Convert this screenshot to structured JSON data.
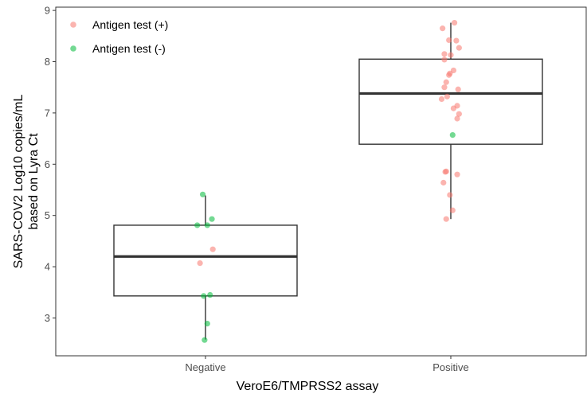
{
  "chart_data": {
    "type": "scatter",
    "subtype": "boxplot-with-jitter",
    "title": "",
    "xlabel": "VeroE6/TMPRSS2 assay",
    "ylabel_lines": [
      "SARS-COV2 Log10 copies/mL",
      "based on Lyra Ct"
    ],
    "categories": [
      "Negative",
      "Positive"
    ],
    "ylim": [
      2.4,
      9
    ],
    "yticks": [
      3,
      4,
      5,
      6,
      7,
      8,
      9
    ],
    "grid": false,
    "legend_position": "top-left",
    "boxes": [
      {
        "category": "Negative",
        "whisker_low": 2.58,
        "q1": 3.43,
        "median": 4.2,
        "q3": 4.81,
        "whisker_high": 5.39
      },
      {
        "category": "Positive",
        "whisker_low": 4.93,
        "q1": 6.39,
        "median": 7.38,
        "q3": 8.05,
        "whisker_high": 8.76
      }
    ],
    "series": [
      {
        "name": "Antigen test (+)",
        "color": "#f8766d",
        "points": [
          {
            "x": "Negative",
            "y": 4.07,
            "jitter": -0.06
          },
          {
            "x": "Negative",
            "y": 4.34,
            "jitter": 0.08
          },
          {
            "x": "Positive",
            "y": 8.76,
            "jitter": 0.04
          },
          {
            "x": "Positive",
            "y": 8.65,
            "jitter": -0.09
          },
          {
            "x": "Positive",
            "y": 8.42,
            "jitter": -0.02
          },
          {
            "x": "Positive",
            "y": 8.41,
            "jitter": 0.06
          },
          {
            "x": "Positive",
            "y": 8.27,
            "jitter": 0.09
          },
          {
            "x": "Positive",
            "y": 8.15,
            "jitter": -0.07
          },
          {
            "x": "Positive",
            "y": 8.13,
            "jitter": 0.0
          },
          {
            "x": "Positive",
            "y": 8.04,
            "jitter": -0.07
          },
          {
            "x": "Positive",
            "y": 7.83,
            "jitter": 0.03
          },
          {
            "x": "Positive",
            "y": 7.77,
            "jitter": -0.01
          },
          {
            "x": "Positive",
            "y": 7.74,
            "jitter": -0.02
          },
          {
            "x": "Positive",
            "y": 7.6,
            "jitter": -0.05
          },
          {
            "x": "Positive",
            "y": 7.5,
            "jitter": -0.07
          },
          {
            "x": "Positive",
            "y": 7.46,
            "jitter": 0.08
          },
          {
            "x": "Positive",
            "y": 7.32,
            "jitter": -0.04
          },
          {
            "x": "Positive",
            "y": 7.27,
            "jitter": -0.1
          },
          {
            "x": "Positive",
            "y": 7.14,
            "jitter": 0.07
          },
          {
            "x": "Positive",
            "y": 7.09,
            "jitter": 0.03
          },
          {
            "x": "Positive",
            "y": 6.98,
            "jitter": 0.09
          },
          {
            "x": "Positive",
            "y": 6.89,
            "jitter": 0.07
          },
          {
            "x": "Positive",
            "y": 5.86,
            "jitter": -0.05
          },
          {
            "x": "Positive",
            "y": 5.85,
            "jitter": -0.06
          },
          {
            "x": "Positive",
            "y": 5.8,
            "jitter": 0.07
          },
          {
            "x": "Positive",
            "y": 5.64,
            "jitter": -0.08
          },
          {
            "x": "Positive",
            "y": 5.4,
            "jitter": -0.01
          },
          {
            "x": "Positive",
            "y": 5.1,
            "jitter": 0.02
          },
          {
            "x": "Positive",
            "y": 4.93,
            "jitter": -0.05
          }
        ]
      },
      {
        "name": "Antigen test (-)",
        "color": "#00ba38",
        "points": [
          {
            "x": "Negative",
            "y": 5.41,
            "jitter": -0.03
          },
          {
            "x": "Negative",
            "y": 4.93,
            "jitter": 0.07
          },
          {
            "x": "Negative",
            "y": 4.81,
            "jitter": -0.09
          },
          {
            "x": "Negative",
            "y": 4.81,
            "jitter": 0.02
          },
          {
            "x": "Negative",
            "y": 3.45,
            "jitter": 0.05
          },
          {
            "x": "Negative",
            "y": 3.43,
            "jitter": -0.02
          },
          {
            "x": "Negative",
            "y": 2.89,
            "jitter": 0.02
          },
          {
            "x": "Negative",
            "y": 2.57,
            "jitter": -0.01
          },
          {
            "x": "Positive",
            "y": 6.57,
            "jitter": 0.02
          }
        ]
      }
    ]
  }
}
